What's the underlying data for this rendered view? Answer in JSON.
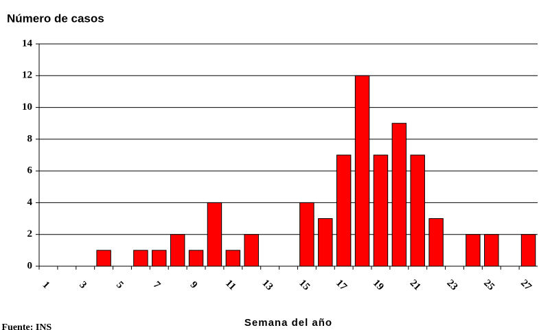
{
  "chart_data": {
    "type": "bar",
    "title": "Número de casos",
    "x_label": "Semana del año",
    "note": "* Fuente: INS",
    "categories": [
      "1",
      null,
      "3",
      null,
      "5",
      null,
      "7",
      null,
      "9",
      null,
      "11",
      null,
      "13",
      null,
      "15",
      null,
      "17",
      null,
      "19",
      null,
      "21",
      null,
      "23",
      null,
      "25",
      null,
      "27"
    ],
    "values": [
      0,
      0,
      0,
      1,
      0,
      1,
      1,
      2,
      1,
      4,
      1,
      2,
      0,
      0,
      4,
      3,
      7,
      12,
      7,
      9,
      7,
      3,
      0,
      2,
      2,
      0,
      2
    ],
    "color": "#ff0000",
    "ylim": [
      0,
      14
    ],
    "yticks": [
      0,
      2,
      4,
      6,
      8,
      10,
      12,
      14
    ],
    "grid": true
  }
}
